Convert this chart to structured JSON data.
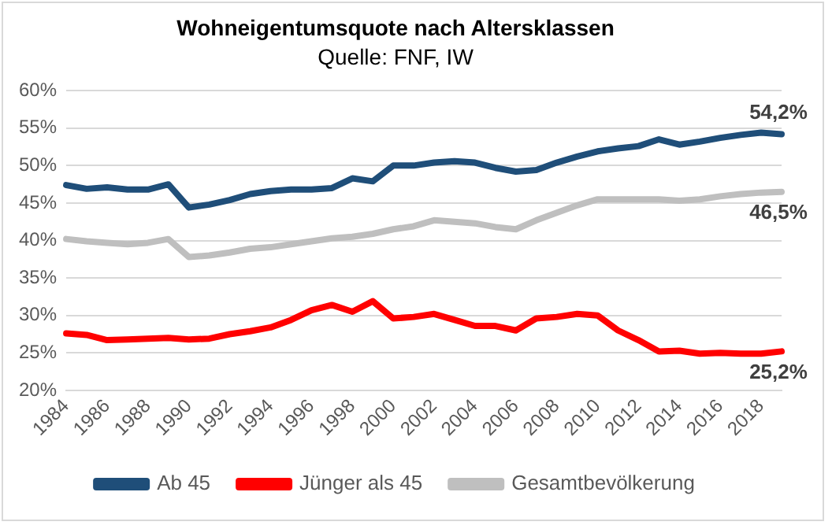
{
  "chart_data": {
    "type": "line",
    "title": "Wohneigentumsquote nach Altersklassen",
    "subtitle": "Quelle: FNF, IW",
    "categories": [
      "1984",
      null,
      "1986",
      null,
      "1988",
      null,
      "1990",
      null,
      "1992",
      null,
      "1994",
      null,
      "1996",
      null,
      "1998",
      null,
      "2000",
      null,
      "2002",
      null,
      "2004",
      null,
      "2006",
      null,
      "2008",
      null,
      "2010",
      null,
      "2012",
      null,
      "2014",
      null,
      "2016",
      null,
      "2018",
      null
    ],
    "series": [
      {
        "name": "Ab 45",
        "color": "#1f4e79",
        "values": [
          47.4,
          46.9,
          47.1,
          46.8,
          46.8,
          47.5,
          44.4,
          44.8,
          45.4,
          46.2,
          46.6,
          46.8,
          46.8,
          47.0,
          48.3,
          47.9,
          50.0,
          50.0,
          50.4,
          50.6,
          50.4,
          49.7,
          49.2,
          49.4,
          50.4,
          51.2,
          51.9,
          52.3,
          52.6,
          53.5,
          52.8,
          53.2,
          53.7,
          54.1,
          54.4,
          54.2
        ],
        "value_labels": [
          null,
          null,
          null,
          null,
          null,
          null,
          null,
          null,
          null,
          null,
          null,
          null,
          null,
          null,
          null,
          null,
          null,
          null,
          null,
          null,
          null,
          null,
          null,
          null,
          null,
          null,
          null,
          null,
          null,
          null,
          null,
          null,
          null,
          null,
          null,
          "54,2%"
        ]
      },
      {
        "name": "Jünger als 45",
        "color": "#ff0000",
        "values": [
          27.6,
          27.4,
          26.7,
          26.8,
          26.9,
          27.0,
          26.8,
          26.9,
          27.5,
          27.9,
          28.4,
          29.4,
          30.7,
          31.4,
          30.5,
          31.9,
          29.6,
          29.8,
          30.2,
          29.4,
          28.6,
          28.6,
          28.0,
          29.6,
          29.8,
          30.2,
          30.0,
          28.0,
          26.7,
          25.2,
          25.3,
          24.9,
          25.0,
          24.9,
          24.9,
          25.2
        ],
        "value_labels": [
          null,
          null,
          null,
          null,
          null,
          null,
          null,
          null,
          null,
          null,
          null,
          null,
          null,
          null,
          null,
          null,
          null,
          null,
          null,
          null,
          null,
          null,
          null,
          null,
          null,
          null,
          null,
          null,
          null,
          null,
          null,
          null,
          null,
          null,
          null,
          "25,2%"
        ]
      },
      {
        "name": "Gesamtbevölkerung",
        "color": "#bfbfbf",
        "values": [
          40.2,
          39.9,
          39.7,
          39.5,
          39.7,
          40.2,
          37.8,
          38.0,
          38.4,
          38.9,
          39.1,
          39.5,
          39.9,
          40.3,
          40.5,
          40.9,
          41.5,
          41.9,
          42.7,
          42.5,
          42.3,
          41.8,
          41.5,
          42.7,
          43.7,
          44.7,
          45.5,
          45.5,
          45.5,
          45.5,
          45.3,
          45.5,
          45.9,
          46.2,
          46.4,
          46.5
        ],
        "value_labels": [
          null,
          null,
          null,
          null,
          null,
          null,
          null,
          null,
          null,
          null,
          null,
          null,
          null,
          null,
          null,
          null,
          null,
          null,
          null,
          null,
          null,
          null,
          null,
          null,
          null,
          null,
          null,
          null,
          null,
          null,
          null,
          null,
          null,
          null,
          null,
          "46,5%"
        ]
      }
    ],
    "ylim": [
      20,
      60
    ],
    "yticks": [
      {
        "value": 20,
        "label": "20%"
      },
      {
        "value": 25,
        "label": "25%"
      },
      {
        "value": 30,
        "label": "30%"
      },
      {
        "value": 35,
        "label": "35%"
      },
      {
        "value": 40,
        "label": "40%"
      },
      {
        "value": 45,
        "label": "45%"
      },
      {
        "value": 50,
        "label": "50%"
      },
      {
        "value": 55,
        "label": "55%"
      },
      {
        "value": 60,
        "label": "60%"
      }
    ],
    "grid": "y",
    "legend": "bottom",
    "marker": "none",
    "line_style": "solid"
  }
}
